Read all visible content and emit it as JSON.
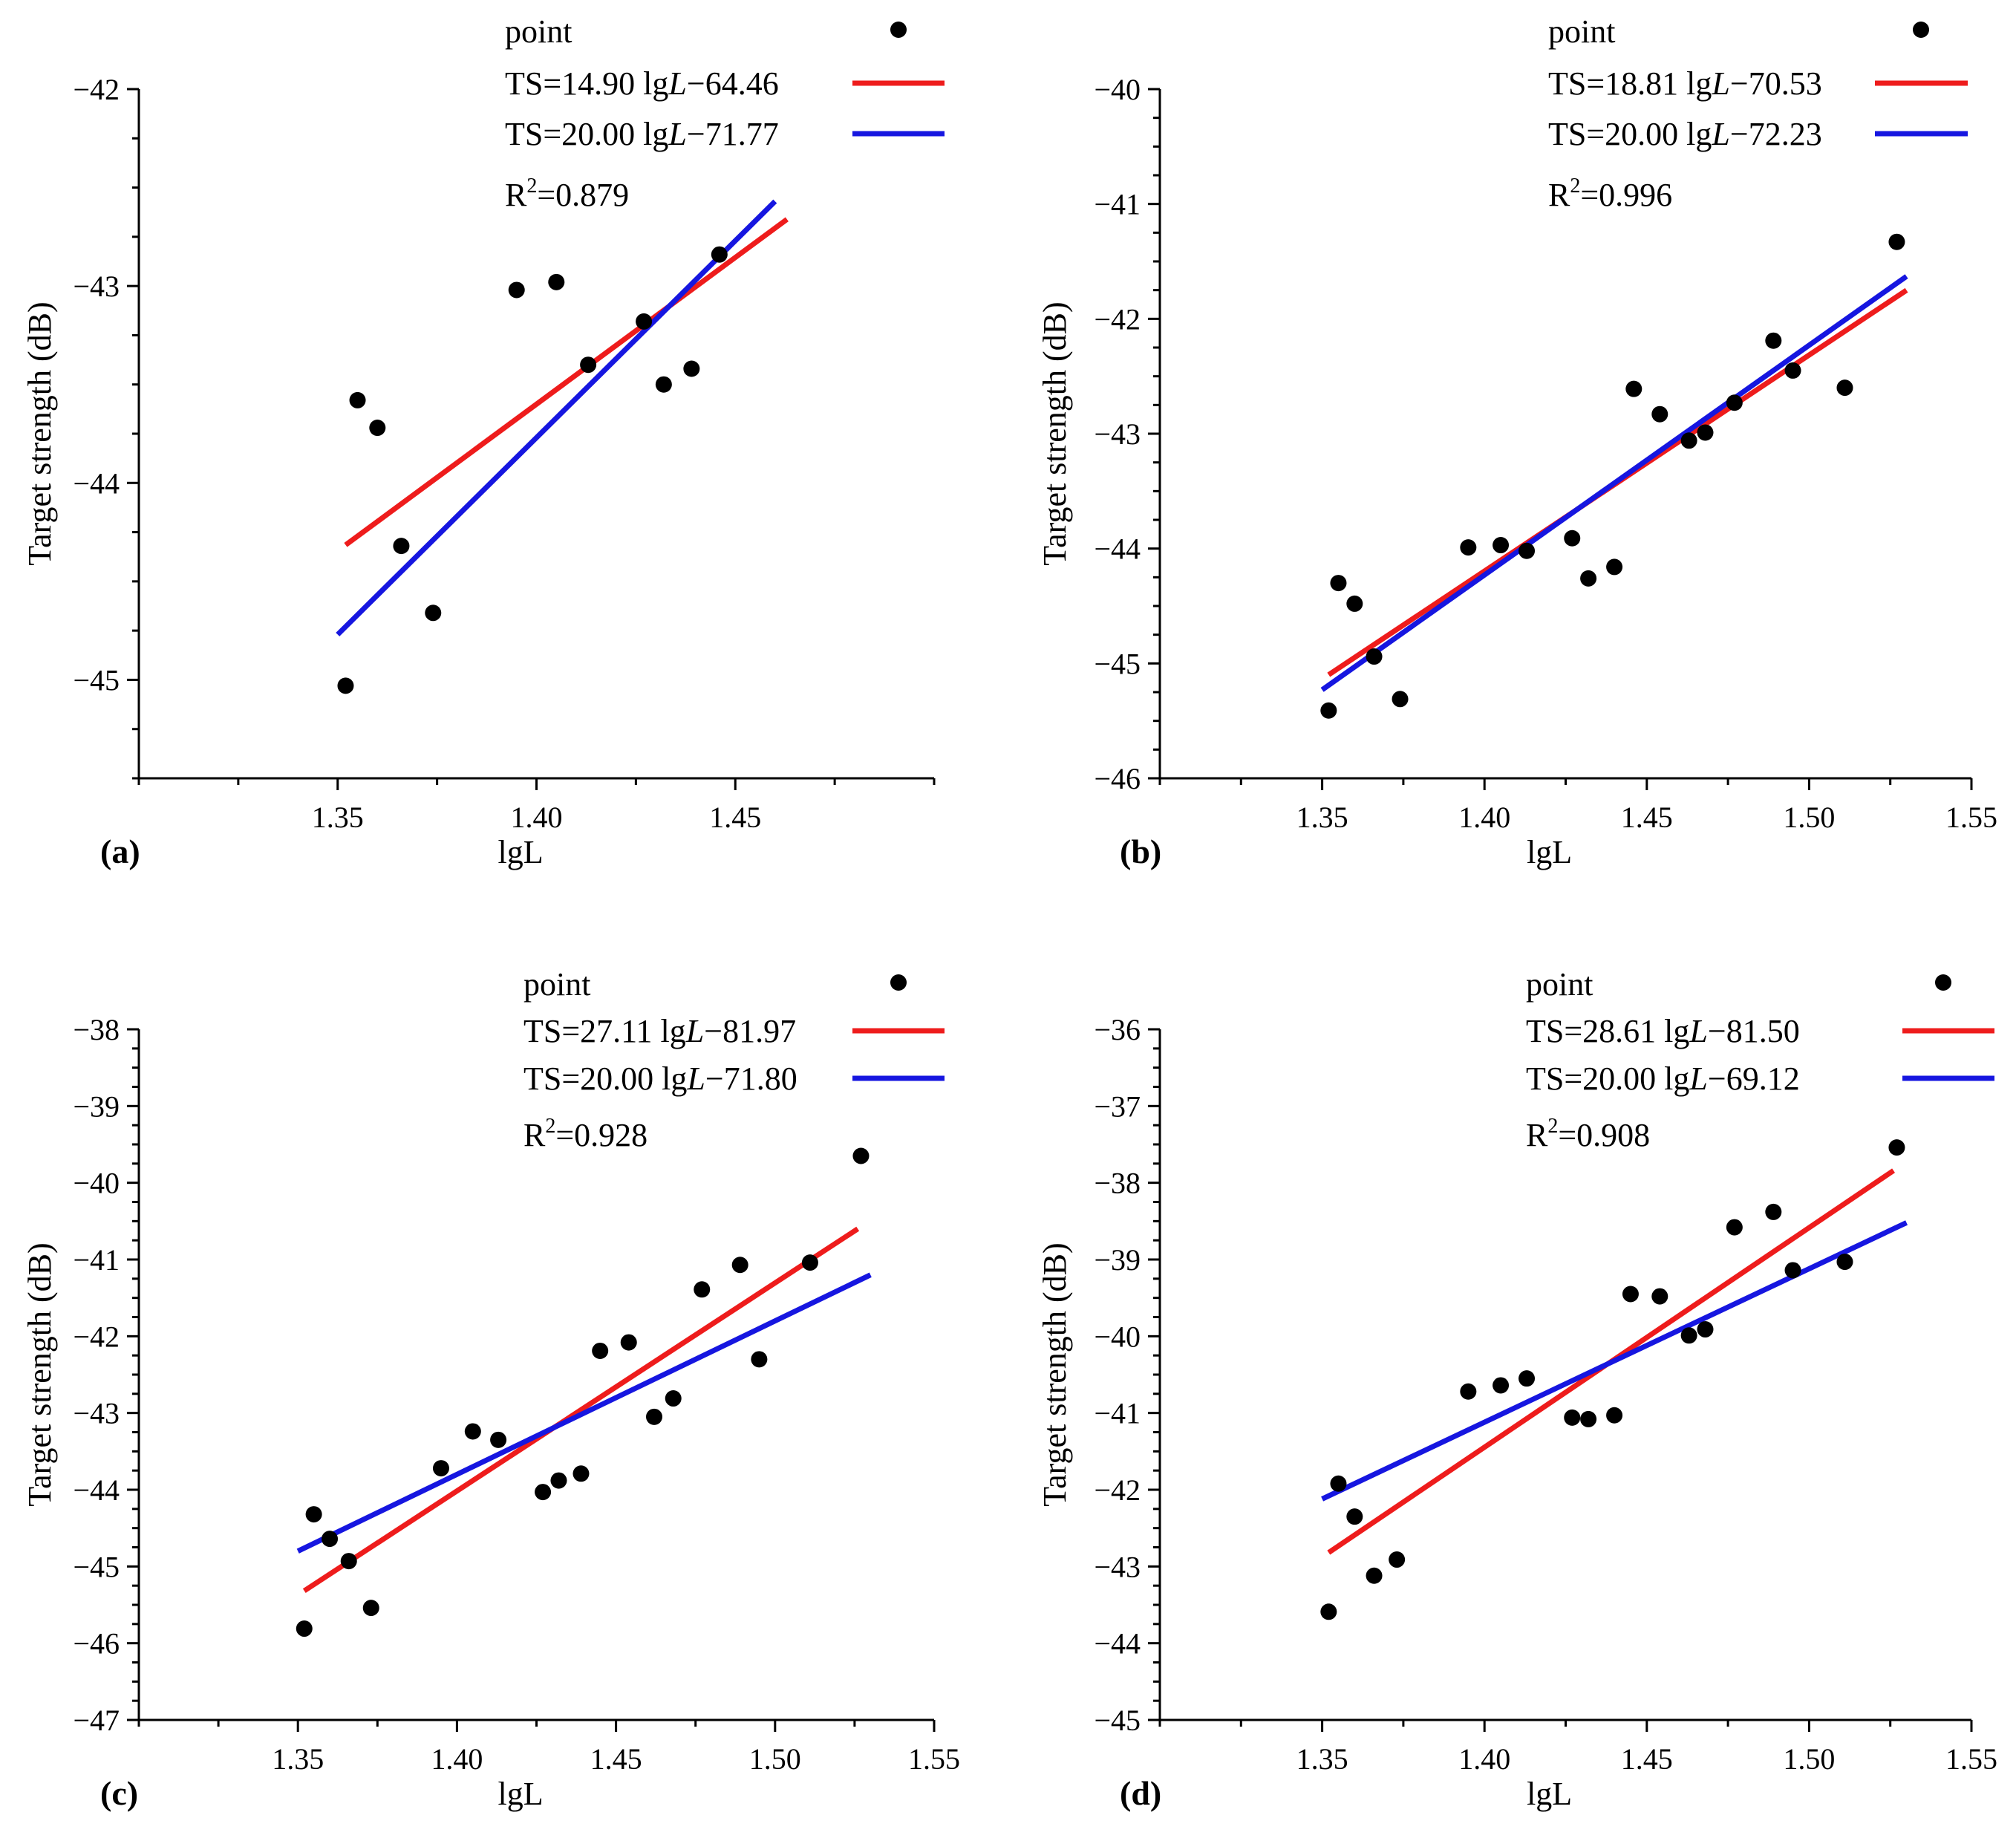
{
  "chart_data": [
    {
      "type": "scatter",
      "panel_label": "(a)",
      "xlabel": "lgL",
      "ylabel": "Target strength (dB)",
      "xlim": [
        1.3,
        1.5
      ],
      "ylim": [
        -45.5,
        -42
      ],
      "xticks": [
        1.35,
        1.4,
        1.45
      ],
      "xtick_labels": [
        "1.35",
        "1.40",
        "1.45"
      ],
      "yticks": [
        -45,
        -44,
        -43,
        -42
      ],
      "ytick_labels": [
        "−45",
        "−44",
        "−43",
        "−42"
      ],
      "legend": {
        "position": "top-right",
        "point": "point",
        "fit_prefix": "TS=14.90 lg",
        "fit_var": "L",
        "fit_suffix": "−64.46",
        "ref_prefix": "TS=20.00 lg",
        "ref_var": "L",
        "ref_suffix": "−71.77",
        "r2_base": "R",
        "r2_exp": "2",
        "r2_value": "=0.879"
      },
      "points": {
        "x": [
          1.352,
          1.355,
          1.36,
          1.366,
          1.374,
          1.395,
          1.405,
          1.413,
          1.427,
          1.432,
          1.439,
          1.446
        ],
        "y": [
          -45.03,
          -43.58,
          -43.72,
          -44.32,
          -44.66,
          -43.02,
          -42.98,
          -43.4,
          -43.18,
          -43.5,
          -43.42,
          -42.84
        ]
      },
      "fit_line": {
        "slope": 14.9,
        "intercept": -64.46,
        "x_range": [
          1.352,
          1.463
        ],
        "color": "#ee1c1c"
      },
      "ref_line": {
        "slope": 20.0,
        "intercept": -71.77,
        "x_range": [
          1.35,
          1.46
        ],
        "color": "#1616e0"
      },
      "legend_point_color": "#000000"
    },
    {
      "type": "scatter",
      "panel_label": "(b)",
      "xlabel": "lgL",
      "ylabel": "Target strength (dB)",
      "xlim": [
        1.3,
        1.55
      ],
      "ylim": [
        -46,
        -40
      ],
      "xticks": [
        1.35,
        1.4,
        1.45,
        1.5,
        1.55
      ],
      "xtick_labels": [
        "1.35",
        "1.40",
        "1.45",
        "1.50",
        "1.55"
      ],
      "yticks": [
        -46,
        -45,
        -44,
        -43,
        -42,
        -41,
        -40
      ],
      "ytick_labels": [
        "−46",
        "−45",
        "−44",
        "−43",
        "−42",
        "−41",
        "−40"
      ],
      "legend": {
        "position": "top-right",
        "point": "point",
        "fit_prefix": "TS=18.81 lg",
        "fit_var": "L",
        "fit_suffix": "−70.53",
        "ref_prefix": "TS=20.00 lg",
        "ref_var": "L",
        "ref_suffix": "−72.23",
        "r2_base": "R",
        "r2_exp": "2",
        "r2_value": "=0.996"
      },
      "points": {
        "x": [
          1.352,
          1.355,
          1.36,
          1.366,
          1.374,
          1.395,
          1.405,
          1.413,
          1.427,
          1.432,
          1.44,
          1.446,
          1.454,
          1.463,
          1.468,
          1.477,
          1.489,
          1.495,
          1.511,
          1.527
        ],
        "y": [
          -45.41,
          -44.3,
          -44.48,
          -44.94,
          -45.31,
          -43.99,
          -43.97,
          -44.02,
          -43.91,
          -44.26,
          -44.16,
          -42.61,
          -42.83,
          -43.06,
          -42.99,
          -42.73,
          -42.19,
          -42.45,
          -42.6,
          -41.33
        ]
      },
      "fit_line": {
        "slope": 18.81,
        "intercept": -70.53,
        "x_range": [
          1.352,
          1.53
        ],
        "color": "#ee1c1c"
      },
      "ref_line": {
        "slope": 20.0,
        "intercept": -72.23,
        "x_range": [
          1.35,
          1.53
        ],
        "color": "#1616e0"
      },
      "legend_point_color": "#000000"
    },
    {
      "type": "scatter",
      "panel_label": "(c)",
      "xlabel": "lgL",
      "ylabel": "Target strength (dB)",
      "xlim": [
        1.3,
        1.55
      ],
      "ylim": [
        -47,
        -38
      ],
      "xticks": [
        1.35,
        1.4,
        1.45,
        1.5,
        1.55
      ],
      "xtick_labels": [
        "1.35",
        "1.40",
        "1.45",
        "1.50",
        "1.55"
      ],
      "yticks": [
        -47,
        -46,
        -45,
        -44,
        -43,
        -42,
        -41,
        -40,
        -39,
        -38
      ],
      "ytick_labels": [
        "−47",
        "−46",
        "−45",
        "−44",
        "−43",
        "−42",
        "−41",
        "−40",
        "−39",
        "−38"
      ],
      "legend": {
        "position": "top-right",
        "point": "point",
        "fit_prefix": "TS=27.11 lg",
        "fit_var": "L",
        "fit_suffix": "−81.97",
        "ref_prefix": "TS=20.00 lg",
        "ref_var": "L",
        "ref_suffix": "−71.80",
        "r2_base": "R",
        "r2_exp": "2",
        "r2_value": "=0.928"
      },
      "points": {
        "x": [
          1.352,
          1.355,
          1.36,
          1.366,
          1.373,
          1.395,
          1.405,
          1.413,
          1.427,
          1.432,
          1.439,
          1.445,
          1.454,
          1.462,
          1.468,
          1.477,
          1.489,
          1.495,
          1.511,
          1.527
        ],
        "y": [
          -45.81,
          -44.32,
          -44.64,
          -44.93,
          -45.54,
          -43.72,
          -43.24,
          -43.35,
          -44.03,
          -43.88,
          -43.79,
          -42.19,
          -42.08,
          -43.05,
          -42.81,
          -41.39,
          -41.07,
          -42.3,
          -41.04,
          -39.65
        ]
      },
      "fit_line": {
        "slope": 27.11,
        "intercept": -81.97,
        "x_range": [
          1.352,
          1.526
        ],
        "color": "#ee1c1c"
      },
      "ref_line": {
        "slope": 20.0,
        "intercept": -71.8,
        "x_range": [
          1.35,
          1.53
        ],
        "color": "#1616e0"
      },
      "legend_point_color": "#000000"
    },
    {
      "type": "scatter",
      "panel_label": "(d)",
      "xlabel": "lgL",
      "ylabel": "Target strength (dB)",
      "xlim": [
        1.3,
        1.55
      ],
      "ylim": [
        -45,
        -36
      ],
      "xticks": [
        1.35,
        1.4,
        1.45,
        1.5,
        1.55
      ],
      "xtick_labels": [
        "1.35",
        "1.40",
        "1.45",
        "1.50",
        "1.55"
      ],
      "yticks": [
        -45,
        -44,
        -43,
        -42,
        -41,
        -40,
        -39,
        -38,
        -37,
        -36
      ],
      "ytick_labels": [
        "−45",
        "−44",
        "−43",
        "−42",
        "−41",
        "−40",
        "−39",
        "−38",
        "−37",
        "−36"
      ],
      "legend": {
        "position": "top-right",
        "point": "point",
        "fit_prefix": "TS=28.61 lg",
        "fit_var": "L",
        "fit_suffix": "−81.50",
        "ref_prefix": "TS=20.00 lg",
        "ref_var": "L",
        "ref_suffix": "−69.12",
        "r2_base": "R",
        "r2_exp": "2",
        "r2_value": "=0.908"
      },
      "points": {
        "x": [
          1.352,
          1.355,
          1.36,
          1.366,
          1.373,
          1.395,
          1.405,
          1.413,
          1.427,
          1.432,
          1.44,
          1.445,
          1.454,
          1.463,
          1.468,
          1.477,
          1.489,
          1.495,
          1.511,
          1.527
        ],
        "y": [
          -43.59,
          -41.92,
          -42.35,
          -43.12,
          -42.91,
          -40.72,
          -40.64,
          -40.55,
          -41.06,
          -41.08,
          -41.03,
          -39.45,
          -39.48,
          -39.99,
          -39.91,
          -38.58,
          -38.38,
          -39.14,
          -39.03,
          -37.54
        ]
      },
      "fit_line": {
        "slope": 28.61,
        "intercept": -81.5,
        "x_range": [
          1.352,
          1.526
        ],
        "color": "#ee1c1c"
      },
      "ref_line": {
        "slope": 20.0,
        "intercept": -69.12,
        "x_range": [
          1.35,
          1.53
        ],
        "color": "#1616e0"
      },
      "legend_point_color": "#000000"
    }
  ]
}
